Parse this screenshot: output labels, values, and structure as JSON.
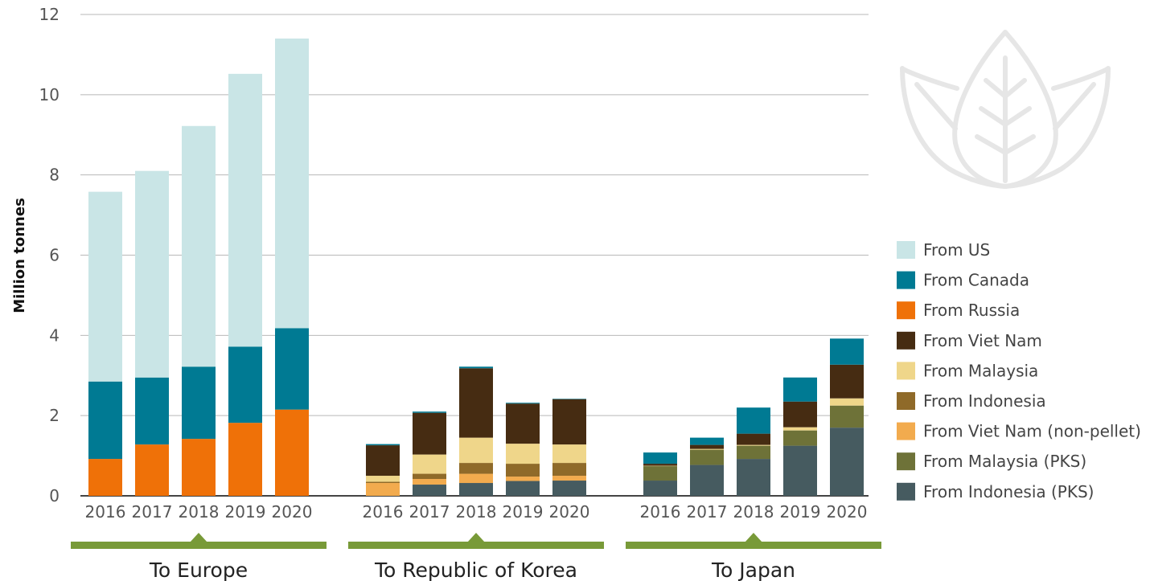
{
  "chart_data": {
    "type": "bar",
    "stacked": true,
    "ylabel": "Million tonnes",
    "ylim": [
      0,
      12
    ],
    "yticks": [
      0,
      2,
      4,
      6,
      8,
      10,
      12
    ],
    "grid": true,
    "legend_position": "right",
    "series": [
      {
        "name": "From Indonesia (PKS)",
        "color": "#465b60"
      },
      {
        "name": "From Malaysia (PKS)",
        "color": "#6e7238"
      },
      {
        "name": "From Viet Nam (non-pellet)",
        "color": "#f2ab4e"
      },
      {
        "name": "From Indonesia",
        "color": "#8f6a29"
      },
      {
        "name": "From Malaysia",
        "color": "#efd68a"
      },
      {
        "name": "From Viet Nam",
        "color": "#462c12"
      },
      {
        "name": "From Russia",
        "color": "#ef7108"
      },
      {
        "name": "From Canada",
        "color": "#007a93"
      },
      {
        "name": "From US",
        "color": "#c9e5e6"
      }
    ],
    "legend_order": [
      "From US",
      "From Canada",
      "From Russia",
      "From Viet Nam",
      "From Malaysia",
      "From Indonesia",
      "From Viet Nam (non-pellet)",
      "From Malaysia (PKS)",
      "From Indonesia (PKS)"
    ],
    "groups": [
      {
        "label": "To Europe",
        "categories": [
          "2016",
          "2017",
          "2018",
          "2019",
          "2020"
        ],
        "values": {
          "From Russia": [
            0.92,
            1.28,
            1.42,
            1.82,
            2.15
          ],
          "From Canada": [
            1.93,
            1.67,
            1.8,
            1.9,
            2.03
          ],
          "From US": [
            4.73,
            5.15,
            6.0,
            6.8,
            7.22
          ]
        }
      },
      {
        "label": "To Republic of Korea",
        "categories": [
          "2016",
          "2017",
          "2018",
          "2019",
          "2020"
        ],
        "values": {
          "From Indonesia (PKS)": [
            0,
            0.28,
            0.32,
            0.37,
            0.38
          ],
          "From Viet Nam (non-pellet)": [
            0.32,
            0.14,
            0.23,
            0.11,
            0.12
          ],
          "From Indonesia": [
            0.03,
            0.13,
            0.27,
            0.32,
            0.32
          ],
          "From Malaysia": [
            0.15,
            0.48,
            0.63,
            0.5,
            0.46
          ],
          "From Viet Nam": [
            0.76,
            1.04,
            1.73,
            1.0,
            1.13
          ],
          "From Canada": [
            0.03,
            0.03,
            0.04,
            0.02,
            0.01
          ]
        }
      },
      {
        "label": "To Japan",
        "categories": [
          "2016",
          "2017",
          "2018",
          "2019",
          "2020"
        ],
        "values": {
          "From Indonesia (PKS)": [
            0.38,
            0.77,
            0.92,
            1.25,
            1.7
          ],
          "From Malaysia (PKS)": [
            0.36,
            0.38,
            0.33,
            0.38,
            0.55
          ],
          "From Malaysia": [
            0.01,
            0.02,
            0.02,
            0.08,
            0.18
          ],
          "From Viet Nam": [
            0.05,
            0.1,
            0.28,
            0.64,
            0.84
          ],
          "From Canada": [
            0.28,
            0.18,
            0.65,
            0.6,
            0.65
          ]
        }
      }
    ]
  }
}
